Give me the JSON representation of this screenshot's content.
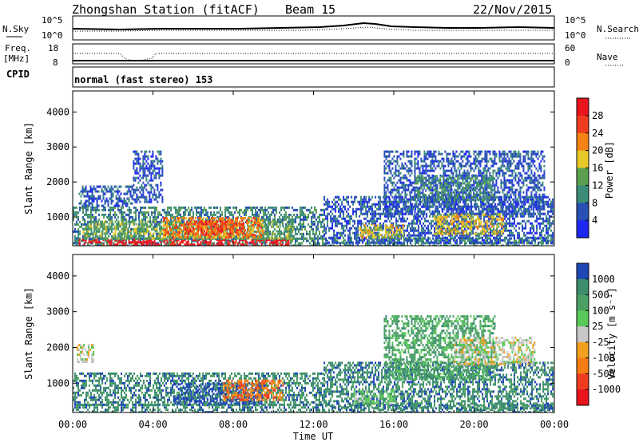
{
  "header": {
    "station": "Zhongshan Station (fitACF)",
    "beam": "Beam 15",
    "date": "22/Nov/2015"
  },
  "top_panel": {
    "left_label": "N.Sky",
    "left_ticks": [
      "10^5",
      "10^0"
    ],
    "right_label": "N.Search",
    "right_ticks": [
      "10^5",
      "10^0"
    ]
  },
  "freq_panel": {
    "left_label_1": "Freq.",
    "left_label_2": "[MHz]",
    "left_ticks": [
      "18",
      "8"
    ],
    "right_label": "Nave",
    "right_ticks": [
      "60",
      "0"
    ]
  },
  "cpid": {
    "label": "CPID",
    "value": "normal (fast stereo) 153"
  },
  "colors": {
    "red": "#e8281e",
    "orange": "#f57d14",
    "yellow_orange": "#f0b41e",
    "yellow": "#e6d23c",
    "green_light": "#78c864",
    "green": "#4b9b6e",
    "teal": "#3c8c78",
    "blue_mid": "#2850b4",
    "blue": "#1e3cc8",
    "gray": "#c8c8c8"
  },
  "chart_data": [
    {
      "type": "heatmap",
      "title": "Power",
      "ylabel": "Slant Range [km]",
      "yticks": [
        "1000",
        "2000",
        "3000",
        "4000"
      ],
      "ylim": [
        180,
        4600
      ],
      "colorbar_label": "Power [dB]",
      "colorbar_ticks": [
        "4",
        "8",
        "12",
        "16",
        "20",
        "24",
        "28"
      ],
      "colorbar_colors": [
        "#1e28f0",
        "#2850b4",
        "#3c8c78",
        "#5aa050",
        "#e6c828",
        "#f58214",
        "#f03c1e",
        "#e8141e"
      ],
      "regions": [
        {
          "t0": 0.0,
          "t1": 23.9,
          "r0": 180,
          "r1": 420,
          "level": 2
        },
        {
          "t0": 0.3,
          "t1": 10.8,
          "r0": 200,
          "r1": 380,
          "level": 7
        },
        {
          "t0": 0.0,
          "t1": 12.5,
          "r0": 380,
          "r1": 1300,
          "level": 2
        },
        {
          "t0": 0.5,
          "t1": 11.0,
          "r0": 420,
          "r1": 900,
          "level": 3
        },
        {
          "t0": 4.5,
          "t1": 9.5,
          "r0": 450,
          "r1": 1000,
          "level": 5
        },
        {
          "t0": 5.5,
          "t1": 8.5,
          "r0": 500,
          "r1": 900,
          "level": 6
        },
        {
          "t0": 0.3,
          "t1": 3.0,
          "r0": 1300,
          "r1": 1900,
          "level": 1
        },
        {
          "t0": 3.0,
          "t1": 4.5,
          "r0": 1400,
          "r1": 2900,
          "level": 1
        },
        {
          "t0": 12.5,
          "t1": 23.9,
          "r0": 300,
          "r1": 1600,
          "level": 1
        },
        {
          "t0": 14.2,
          "t1": 16.5,
          "r0": 400,
          "r1": 800,
          "level": 4
        },
        {
          "t0": 18.0,
          "t1": 21.5,
          "r0": 500,
          "r1": 1100,
          "level": 4
        },
        {
          "t0": 15.5,
          "t1": 23.5,
          "r0": 1100,
          "r1": 2900,
          "level": 1
        },
        {
          "t0": 17.0,
          "t1": 21.0,
          "r0": 1500,
          "r1": 2200,
          "level": 2
        }
      ]
    },
    {
      "type": "heatmap",
      "title": "Velocity",
      "ylabel": "Slant Range [km]",
      "yticks": [
        "1000",
        "2000",
        "3000",
        "4000"
      ],
      "ylim": [
        180,
        4600
      ],
      "xlabel": "Time UT",
      "xticks": [
        "00:00",
        "04:00",
        "08:00",
        "12:00",
        "16:00",
        "20:00",
        "00:00"
      ],
      "xlim": [
        0,
        24
      ],
      "colorbar_label": "Velocity [m s⁻¹]",
      "colorbar_ticks": [
        "1000",
        "500",
        "100",
        "25",
        "-25",
        "-100",
        "-500",
        "-1000"
      ],
      "colorbar_colors": [
        "#1e46b4",
        "#3c8c6e",
        "#4ba064",
        "#5ac85a",
        "#c8c8c8",
        "#f0a01e",
        "#f57d14",
        "#f03c1e",
        "#e8141e"
      ],
      "regions": [
        {
          "t0": 0.0,
          "t1": 23.9,
          "r0": 180,
          "r1": 420,
          "level": 1
        },
        {
          "t0": 0.0,
          "t1": 12.5,
          "r0": 380,
          "r1": 1300,
          "level": 1
        },
        {
          "t0": 5.0,
          "t1": 9.5,
          "r0": 450,
          "r1": 1000,
          "level": 0
        },
        {
          "t0": 7.5,
          "t1": 10.5,
          "r0": 550,
          "r1": 1100,
          "level": 6
        },
        {
          "t0": 12.5,
          "t1": 23.9,
          "r0": 300,
          "r1": 1600,
          "level": 1
        },
        {
          "t0": 14.0,
          "t1": 16.0,
          "r0": 400,
          "r1": 800,
          "level": 3
        },
        {
          "t0": 15.5,
          "t1": 21.0,
          "r0": 1100,
          "r1": 2900,
          "level": 2
        },
        {
          "t0": 19.0,
          "t1": 23.0,
          "r0": 1500,
          "r1": 2300,
          "level": 4
        },
        {
          "t0": 0.2,
          "t1": 1.0,
          "r0": 1600,
          "r1": 2100,
          "level": 4
        }
      ]
    }
  ]
}
